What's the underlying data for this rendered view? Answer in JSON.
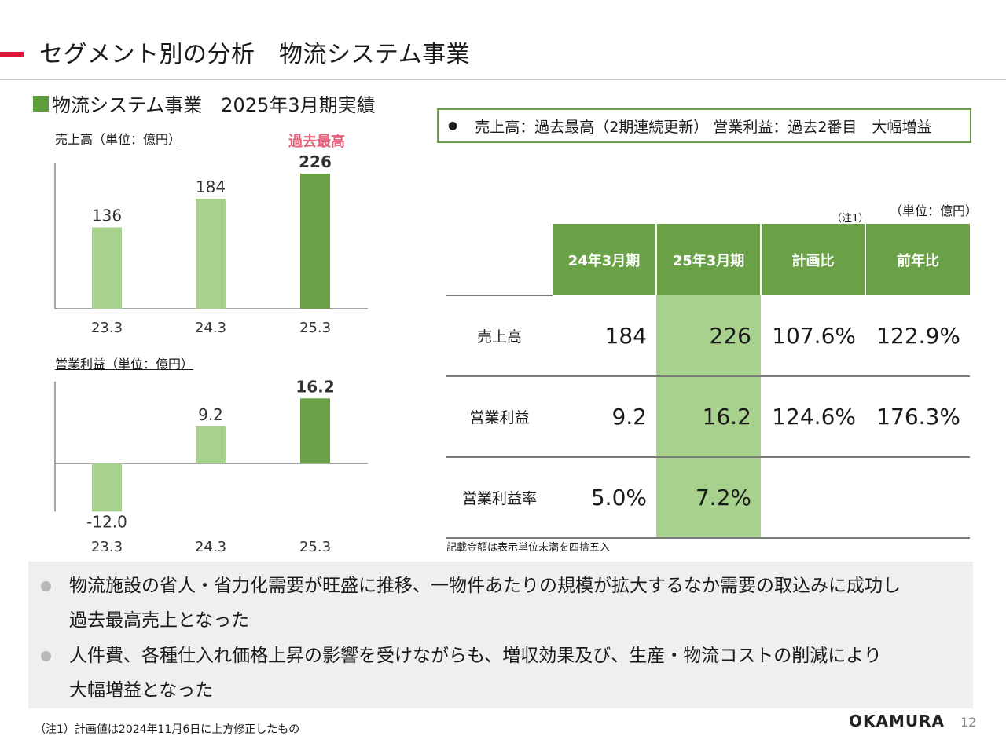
{
  "header": {
    "title": "セグメント別の分析　物流システム事業"
  },
  "section": {
    "heading": "物流システム事業　2025年3月期実績"
  },
  "highlight_note": "売上高：過去最高（2期連続更新）  営業利益：過去2番目　大幅増益",
  "colors": {
    "accent": "#e0173a",
    "green_dark": "#6aa147",
    "green_light": "#a9d18e",
    "record_label": "#e8607a"
  },
  "chart_data": [
    {
      "type": "bar",
      "title": "売上高（単位：億円）",
      "categories": [
        "23.3",
        "24.3",
        "25.3"
      ],
      "values": [
        136,
        184,
        226
      ],
      "value_labels": [
        "136",
        "184",
        "226"
      ],
      "highlight_index": 2,
      "annotation": "過去最高"
    },
    {
      "type": "bar",
      "title": "営業利益（単位：億円）",
      "categories": [
        "23.3",
        "24.3",
        "25.3"
      ],
      "values": [
        -12.0,
        9.2,
        16.2
      ],
      "value_labels": [
        "-12.0",
        "9.2",
        "16.2"
      ],
      "highlight_index": 2
    }
  ],
  "table": {
    "unit_note": "（単位：億円）",
    "footnote_mark": "（注1）",
    "columns": [
      "24年3月期",
      "25年3月期",
      "計画比",
      "前年比"
    ],
    "rows": [
      {
        "label": "売上高",
        "cells": [
          "184",
          "226",
          "107.6%",
          "122.9%"
        ]
      },
      {
        "label": "営業利益",
        "cells": [
          "9.2",
          "16.2",
          "124.6%",
          "176.3%"
        ]
      },
      {
        "label": "営業利益率",
        "cells": [
          "5.0%",
          "7.2%",
          "",
          ""
        ]
      }
    ],
    "rounding_note": "記載金額は表示単位未満を四捨五入"
  },
  "comments": [
    {
      "line1": "物流施設の省人・省力化需要が旺盛に推移、一物件あたりの規模が拡大するなか需要の取込みに成功し",
      "line2": "過去最高売上となった"
    },
    {
      "line1": "人件費、各種仕入れ価格上昇の影響を受けながらも、増収効果及び、生産・物流コストの削減により",
      "line2": "大幅増益となった"
    }
  ],
  "footnote": "（注1）計画値は2024年11月6日に上方修正したもの",
  "footer": {
    "logo": "OKAMURA",
    "page_number": "12"
  }
}
